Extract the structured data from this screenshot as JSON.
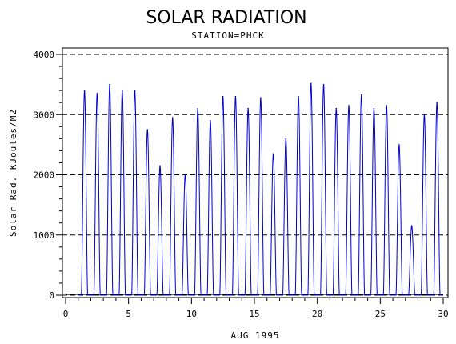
{
  "chart_data": {
    "type": "line",
    "title": "SOLAR RADIATION",
    "subtitle": "STATION=PHCK",
    "xlabel": "AUG 1995",
    "ylabel": "Solar Rad. KJoules/M2",
    "xlim": [
      0,
      30
    ],
    "ylim": [
      0,
      4000
    ],
    "xticks": [
      0,
      5,
      10,
      15,
      20,
      25,
      30
    ],
    "yticks": [
      0,
      1000,
      2000,
      3000,
      4000
    ],
    "grid": "horizontal dashed at y ticks",
    "line_color": "#0000cc",
    "daily_peaks": [
      {
        "day": 1,
        "peak": 3400
      },
      {
        "day": 2,
        "peak": 3350
      },
      {
        "day": 3,
        "peak": 3500
      },
      {
        "day": 4,
        "peak": 3400
      },
      {
        "day": 5,
        "peak": 3400
      },
      {
        "day": 6,
        "peak": 2750
      },
      {
        "day": 7,
        "peak": 2150
      },
      {
        "day": 8,
        "peak": 2950
      },
      {
        "day": 9,
        "peak": 2000
      },
      {
        "day": 10,
        "peak": 3100
      },
      {
        "day": 11,
        "peak": 2900
      },
      {
        "day": 12,
        "peak": 3300
      },
      {
        "day": 13,
        "peak": 3300
      },
      {
        "day": 14,
        "peak": 3100
      },
      {
        "day": 15,
        "peak": 3280
      },
      {
        "day": 16,
        "peak": 2350
      },
      {
        "day": 17,
        "peak": 2600
      },
      {
        "day": 18,
        "peak": 3300
      },
      {
        "day": 19,
        "peak": 3520
      },
      {
        "day": 20,
        "peak": 3500
      },
      {
        "day": 21,
        "peak": 3100
      },
      {
        "day": 22,
        "peak": 3150
      },
      {
        "day": 23,
        "peak": 3330
      },
      {
        "day": 24,
        "peak": 3100
      },
      {
        "day": 25,
        "peak": 3150
      },
      {
        "day": 26,
        "peak": 2500
      },
      {
        "day": 27,
        "peak": 1150
      },
      {
        "day": 28,
        "peak": 3000
      },
      {
        "day": 29,
        "peak": 3200
      }
    ]
  }
}
